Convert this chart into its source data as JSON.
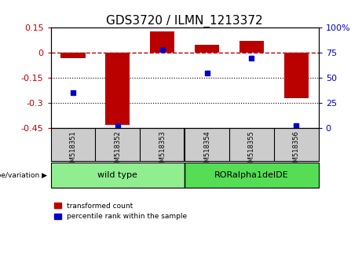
{
  "title": "GDS3720 / ILMN_1213372",
  "samples": [
    "GSM518351",
    "GSM518352",
    "GSM518353",
    "GSM518354",
    "GSM518355",
    "GSM518356"
  ],
  "red_values": [
    -0.03,
    -0.43,
    0.13,
    0.05,
    0.07,
    -0.27
  ],
  "blue_values": [
    35,
    2,
    78,
    55,
    70,
    2
  ],
  "red_color": "#bb0000",
  "blue_color": "#0000cc",
  "ylim_left": [
    -0.45,
    0.15
  ],
  "ylim_right": [
    0,
    100
  ],
  "yticks_left": [
    0.15,
    0.0,
    -0.15,
    -0.3,
    -0.45
  ],
  "yticks_right": [
    100,
    75,
    50,
    25,
    0
  ],
  "groups": [
    {
      "label": "wild type",
      "indices": [
        0,
        1,
        2
      ],
      "color": "#90ee90"
    },
    {
      "label": "RORalpha1delDE",
      "indices": [
        3,
        4,
        5
      ],
      "color": "#55dd55"
    }
  ],
  "genotype_label": "genotype/variation",
  "legend_red": "transformed count",
  "legend_blue": "percentile rank within the sample",
  "hline_y": 0.0,
  "dotted_lines": [
    -0.15,
    -0.3
  ],
  "bar_width": 0.55,
  "background_color": "#ffffff",
  "plot_bg": "#ffffff",
  "title_fontsize": 11,
  "tick_fontsize": 8,
  "label_fontsize": 7
}
